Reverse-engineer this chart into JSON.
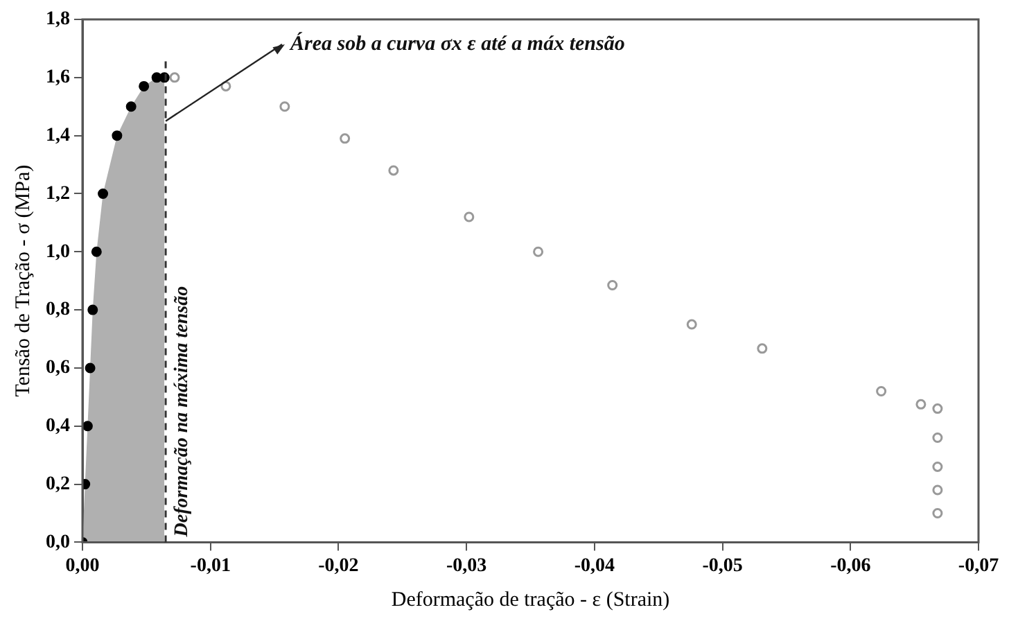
{
  "chart_data": {
    "type": "scatter",
    "xlabel": "Deformação de tração - ε (Strain)",
    "ylabel": "Tensão de Tração - σ (MPa)",
    "xlim": [
      0,
      -0.07
    ],
    "ylim": [
      0,
      1.8
    ],
    "xticks": [
      {
        "value": 0,
        "label": "0,00"
      },
      {
        "value": -0.01,
        "label": "-0,01"
      },
      {
        "value": -0.02,
        "label": "-0,02"
      },
      {
        "value": -0.03,
        "label": "-0,03"
      },
      {
        "value": -0.04,
        "label": "-0,04"
      },
      {
        "value": -0.05,
        "label": "-0,05"
      },
      {
        "value": -0.06,
        "label": "-0,06"
      },
      {
        "value": -0.07,
        "label": "-0,07"
      }
    ],
    "yticks": [
      {
        "value": 0,
        "label": "0,0"
      },
      {
        "value": 0.2,
        "label": "0,2"
      },
      {
        "value": 0.4,
        "label": "0,4"
      },
      {
        "value": 0.6,
        "label": "0,6"
      },
      {
        "value": 0.8,
        "label": "0,8"
      },
      {
        "value": 1.0,
        "label": "1,0"
      },
      {
        "value": 1.2,
        "label": "1,2"
      },
      {
        "value": 1.4,
        "label": "1,4"
      },
      {
        "value": 1.6,
        "label": "1,6"
      },
      {
        "value": 1.8,
        "label": "1,8"
      }
    ],
    "grid": false,
    "legend": false,
    "marker": "circle",
    "series": [
      {
        "type": "area",
        "marker": "none",
        "color": "#b0b0b0",
        "x": [
          0,
          -0.0002,
          -0.0004,
          -0.0006,
          -0.0008,
          -0.0011,
          -0.0016,
          -0.0027,
          -0.0038,
          -0.0048,
          -0.0058,
          -0.0064
        ],
        "values": [
          0,
          0.2,
          0.4,
          0.6,
          0.8,
          1.0,
          1.2,
          1.4,
          1.5,
          1.57,
          1.6,
          1.6
        ]
      },
      {
        "color": "#000000",
        "x": [
          0,
          -0.0002,
          -0.0004,
          -0.0006,
          -0.0008,
          -0.0011,
          -0.0016,
          -0.0027,
          -0.0038,
          -0.0048,
          -0.0058,
          -0.0064
        ],
        "values": [
          0,
          0.2,
          0.4,
          0.6,
          0.8,
          1.0,
          1.2,
          1.4,
          1.5,
          1.57,
          1.6,
          1.6
        ]
      },
      {
        "color": "#999999",
        "x": [
          -0.0072,
          -0.0112,
          -0.0158,
          -0.0205,
          -0.0243,
          -0.0302,
          -0.0356,
          -0.0414,
          -0.0476,
          -0.0531,
          -0.0624,
          -0.0655,
          -0.0668,
          -0.0668,
          -0.0668,
          -0.0668,
          -0.0668
        ],
        "values": [
          1.6,
          1.57,
          1.5,
          1.39,
          1.28,
          1.12,
          1.0,
          0.885,
          0.75,
          0.667,
          0.52,
          0.475,
          0.46,
          0.36,
          0.26,
          0.18,
          0.1
        ]
      }
    ],
    "ref_lines": [
      {
        "axis": "x",
        "value": -0.0065,
        "label": "Deformação na máxima tensão",
        "line_style": "dashed",
        "color": "#333333"
      }
    ],
    "annotations": [
      {
        "text": "Área sob a curva σx ε até a máx tensão",
        "x": -0.0065,
        "y": 1.45
      }
    ]
  }
}
